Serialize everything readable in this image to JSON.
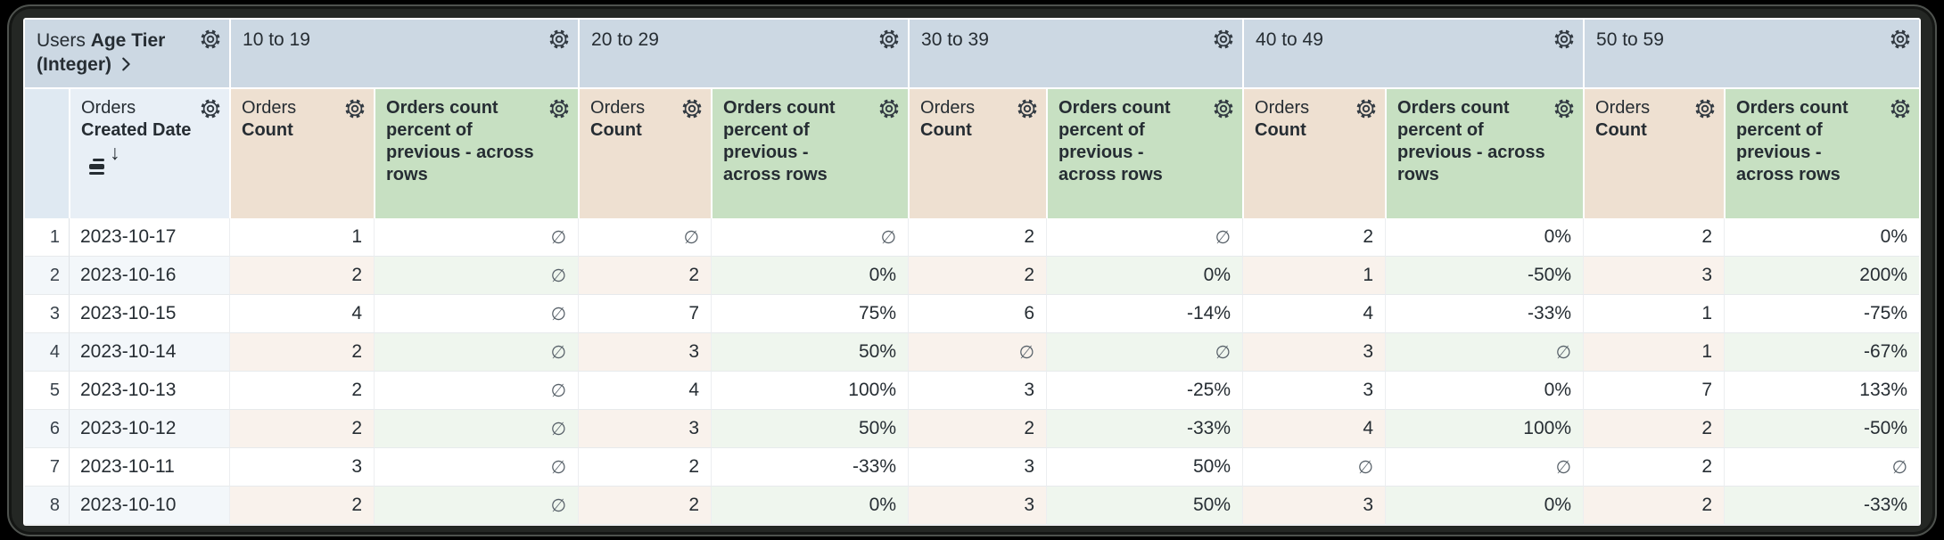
{
  "colors": {
    "group_header": "#ccd8e3",
    "index_header": "#dfe9f2",
    "dimension_header": "#e8eff6",
    "count_header": "#eee0d1",
    "percent_header": "#c7e0c2",
    "row_tint_blue": "#f3f7fa",
    "row_tint_tan": "#f9f2ec",
    "row_tint_green": "#eff6ee",
    "text": "#262d33",
    "frame": "#242724"
  },
  "icons": {
    "gear": "settings-gear",
    "expand": "chevron-right",
    "sort": "sorted-field-descending"
  },
  "table": {
    "pivot_field": {
      "view": "Users",
      "field": "Age Tier (Integer)"
    },
    "row_field": {
      "view": "Orders",
      "field": "Created Date"
    },
    "sort_arrow": "↓",
    "pivot_values": [
      "10 to 19",
      "20 to 29",
      "30 to 39",
      "40 to 49",
      "50 to 59"
    ],
    "measures": [
      {
        "view": "Orders",
        "field": "Count"
      },
      {
        "view": "",
        "field": "Orders count percent of previous - across rows"
      }
    ],
    "null_symbol": "∅",
    "rows": [
      {
        "index": "1",
        "date": "2023-10-17",
        "values": [
          "1",
          "∅",
          "∅",
          "∅",
          "2",
          "∅",
          "2",
          "0%",
          "2",
          "0%"
        ]
      },
      {
        "index": "2",
        "date": "2023-10-16",
        "values": [
          "2",
          "∅",
          "2",
          "0%",
          "2",
          "0%",
          "1",
          "-50%",
          "3",
          "200%"
        ]
      },
      {
        "index": "3",
        "date": "2023-10-15",
        "values": [
          "4",
          "∅",
          "7",
          "75%",
          "6",
          "-14%",
          "4",
          "-33%",
          "1",
          "-75%"
        ]
      },
      {
        "index": "4",
        "date": "2023-10-14",
        "values": [
          "2",
          "∅",
          "3",
          "50%",
          "∅",
          "∅",
          "3",
          "∅",
          "1",
          "-67%"
        ]
      },
      {
        "index": "5",
        "date": "2023-10-13",
        "values": [
          "2",
          "∅",
          "4",
          "100%",
          "3",
          "-25%",
          "3",
          "0%",
          "7",
          "133%"
        ]
      },
      {
        "index": "6",
        "date": "2023-10-12",
        "values": [
          "2",
          "∅",
          "3",
          "50%",
          "2",
          "-33%",
          "4",
          "100%",
          "2",
          "-50%"
        ]
      },
      {
        "index": "7",
        "date": "2023-10-11",
        "values": [
          "3",
          "∅",
          "2",
          "-33%",
          "3",
          "50%",
          "∅",
          "∅",
          "2",
          "∅"
        ]
      },
      {
        "index": "8",
        "date": "2023-10-10",
        "values": [
          "2",
          "∅",
          "2",
          "0%",
          "3",
          "50%",
          "3",
          "0%",
          "2",
          "-33%"
        ]
      }
    ]
  }
}
